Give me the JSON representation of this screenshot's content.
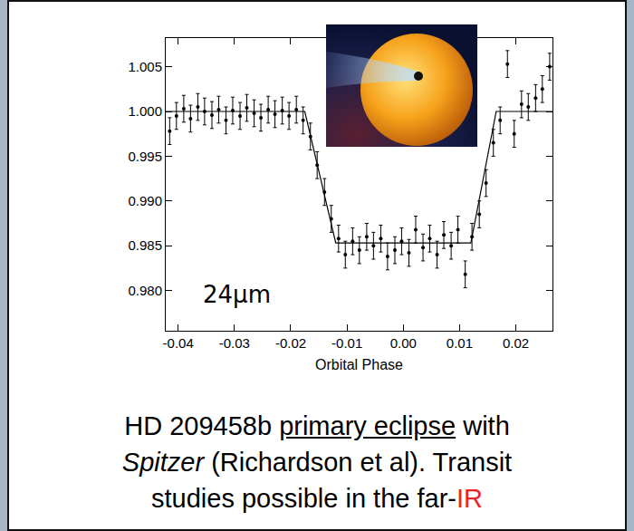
{
  "chart_data": {
    "type": "scatter",
    "xlabel": "Orbital Phase",
    "xlim": [
      -0.0422,
      0.0265
    ],
    "xticks": [
      -0.04,
      -0.03,
      -0.02,
      -0.01,
      {
        "value": 0,
        "label": "0.00"
      },
      0.01,
      0.02
    ],
    "ylim": [
      0.9755,
      1.0082
    ],
    "yticks": [
      {
        "value": 0.98,
        "label": "0.980"
      },
      0.985,
      {
        "value": 0.99,
        "label": "0.990"
      },
      0.995,
      {
        "value": 1.0,
        "label": "1.000"
      },
      1.005
    ],
    "grid": false,
    "annotations": [
      {
        "text": "24μm",
        "x": -0.0295,
        "y": 0.9795
      }
    ],
    "series": [
      {
        "type": "scatter",
        "marker": "circle",
        "color": "#000000",
        "x": [
          -0.0415,
          -0.0403,
          -0.039,
          -0.0378,
          -0.0365,
          -0.0353,
          -0.034,
          -0.0328,
          -0.0315,
          -0.0303,
          -0.029,
          -0.0278,
          -0.0265,
          -0.0253,
          -0.024,
          -0.0228,
          -0.0215,
          -0.0203,
          -0.019,
          -0.0178,
          -0.0165,
          -0.0153,
          -0.014,
          -0.0128,
          -0.0115,
          -0.0103,
          -0.009,
          -0.0078,
          -0.0065,
          -0.0053,
          -0.004,
          -0.0028,
          -0.0015,
          -0.0003,
          0.001,
          0.0022,
          0.0035,
          0.0047,
          0.006,
          0.0072,
          0.0085,
          0.0097,
          0.011,
          0.0122,
          0.0135,
          0.0147,
          0.016,
          0.0172,
          0.0185,
          0.0197,
          0.021,
          0.0222,
          0.0235,
          0.0247,
          0.026
        ],
        "values": [
          0.9978,
          0.9995,
          1.0003,
          0.9992,
          1.0005,
          1.0,
          0.9996,
          1.0002,
          0.999,
          1.0001,
          0.9995,
          1.0004,
          0.9998,
          0.9993,
          1.0002,
          0.9997,
          1.0001,
          0.9995,
          1.0002,
          0.999,
          0.9972,
          0.994,
          0.991,
          0.988,
          0.9858,
          0.984,
          0.9855,
          0.9845,
          0.986,
          0.985,
          0.9858,
          0.9838,
          0.9845,
          0.9855,
          0.9842,
          0.9868,
          0.9848,
          0.9858,
          0.984,
          0.9862,
          0.985,
          0.9868,
          0.9818,
          0.986,
          0.9885,
          0.992,
          0.9965,
          0.999,
          1.0053,
          0.9975,
          1.0008,
          1.0005,
          1.0015,
          1.0025,
          1.005
        ],
        "errors": [
          0.0015,
          0.0015,
          0.0015,
          0.0015,
          0.0015,
          0.0015,
          0.0015,
          0.0015,
          0.0015,
          0.0015,
          0.0015,
          0.0015,
          0.0015,
          0.0015,
          0.0015,
          0.0015,
          0.0015,
          0.0015,
          0.0015,
          0.0015,
          0.0015,
          0.0015,
          0.0015,
          0.0015,
          0.0015,
          0.0015,
          0.0015,
          0.0015,
          0.0015,
          0.0015,
          0.0015,
          0.0015,
          0.0015,
          0.0015,
          0.0015,
          0.0015,
          0.0015,
          0.0015,
          0.0015,
          0.0015,
          0.0015,
          0.0015,
          0.0015,
          0.0015,
          0.0015,
          0.0015,
          0.0015,
          0.0015,
          0.0015,
          0.0015,
          0.0015,
          0.0015,
          0.0015,
          0.0015,
          0.0015
        ]
      },
      {
        "type": "line",
        "line_style": "solid",
        "color": "#000000",
        "x": [
          -0.0422,
          -0.0175,
          -0.012,
          0.012,
          0.0165,
          0.0265
        ],
        "values": [
          1.0,
          1.0,
          0.9853,
          0.9853,
          1.0,
          1.0
        ]
      }
    ],
    "caption": [
      [
        {
          "text": "HD 209458b "
        },
        {
          "text": "primary eclipse",
          "style": "underline"
        },
        {
          "text": " with"
        }
      ],
      [
        {
          "text": "Spitzer",
          "style": "italic"
        },
        {
          "text": " (Richardson et al). Transit"
        }
      ],
      [
        {
          "text": "studies possible in the far-"
        },
        {
          "text": "IR",
          "color": "#ee2222"
        }
      ]
    ]
  }
}
